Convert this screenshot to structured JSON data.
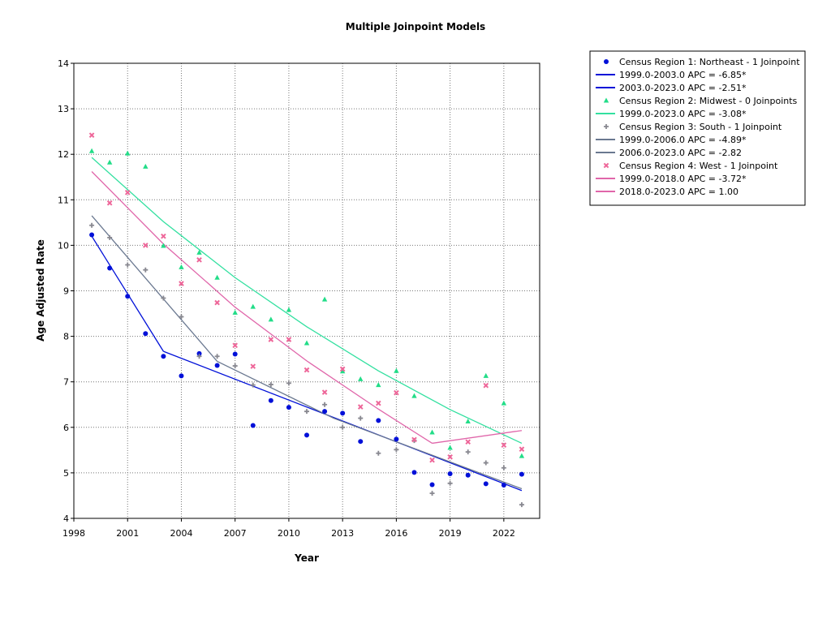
{
  "chart_data": {
    "type": "scatter",
    "title": "Multiple Joinpoint Models",
    "xlabel": "Year",
    "ylabel": "Age Adjusted Rate",
    "xlim": [
      1998,
      2024
    ],
    "ylim": [
      4,
      14
    ],
    "x_ticks": [
      1998,
      2001,
      2004,
      2007,
      2010,
      2013,
      2016,
      2019,
      2022
    ],
    "y_ticks": [
      4,
      5,
      6,
      7,
      8,
      9,
      10,
      11,
      12,
      13,
      14
    ],
    "grid": true,
    "legend_position": "right",
    "series": [
      {
        "name": "Census Region 1: Northeast - 1 Joinpoint",
        "color": "#0010d8",
        "marker": "circle",
        "x": [
          1999,
          2000,
          2001,
          2002,
          2003,
          2004,
          2005,
          2006,
          2007,
          2008,
          2009,
          2010,
          2011,
          2012,
          2013,
          2014,
          2015,
          2016,
          2017,
          2018,
          2019,
          2020,
          2021,
          2022,
          2023
        ],
        "y": [
          10.23,
          9.5,
          8.88,
          8.06,
          7.56,
          7.13,
          7.62,
          7.36,
          7.61,
          6.04,
          6.59,
          6.44,
          5.83,
          6.35,
          6.31,
          5.69,
          6.15,
          5.74,
          5.01,
          4.74,
          4.98,
          4.95,
          4.76,
          4.73,
          4.97
        ],
        "fit": [
          {
            "label": "1999.0-2003.0 APC  =  -6.85*",
            "x": [
              1999,
              2003
            ],
            "y": [
              10.2,
              7.67
            ]
          },
          {
            "label": "2003.0-2023.0 APC  =  -2.51*",
            "x": [
              2003,
              2023
            ],
            "y": [
              7.67,
              4.61
            ]
          }
        ]
      },
      {
        "name": "Census Region 2: Midwest - 0 Joinpoints",
        "color": "#22dd88",
        "fit_color": "#33e0a0",
        "marker": "triangle",
        "x": [
          1999,
          2000,
          2001,
          2002,
          2003,
          2004,
          2005,
          2006,
          2007,
          2008,
          2009,
          2010,
          2011,
          2012,
          2013,
          2014,
          2015,
          2016,
          2017,
          2018,
          2019,
          2020,
          2021,
          2022,
          2023
        ],
        "y": [
          12.07,
          11.82,
          12.02,
          11.73,
          9.99,
          9.52,
          9.84,
          9.29,
          8.52,
          8.65,
          8.37,
          8.58,
          7.85,
          8.81,
          7.23,
          7.06,
          6.93,
          7.24,
          6.69,
          5.89,
          5.55,
          6.13,
          7.13,
          6.53,
          5.37
        ],
        "fit": [
          {
            "label": "1999.0-2023.0 APC  =  -3.08*",
            "x": [
              1999,
              2003,
              2007,
              2011,
              2015,
              2019,
              2023
            ],
            "y": [
              11.93,
              10.52,
              9.29,
              8.21,
              7.24,
              6.39,
              5.65
            ]
          }
        ]
      },
      {
        "name": "Census Region 3: South - 1 Joinpoint",
        "color": "#888890",
        "fit_color": "#6a7890",
        "marker": "plus",
        "x": [
          1999,
          2000,
          2001,
          2002,
          2003,
          2004,
          2005,
          2006,
          2007,
          2008,
          2009,
          2010,
          2011,
          2012,
          2013,
          2014,
          2015,
          2016,
          2017,
          2018,
          2019,
          2020,
          2021,
          2022,
          2023
        ],
        "y": [
          10.44,
          10.17,
          9.57,
          9.46,
          8.84,
          8.43,
          7.56,
          7.56,
          7.35,
          6.93,
          6.94,
          6.97,
          6.35,
          6.5,
          6.0,
          6.2,
          5.43,
          5.51,
          5.71,
          4.55,
          4.77,
          5.46,
          5.22,
          5.11,
          4.3
        ],
        "fit": [
          {
            "label": "1999.0-2006.0 APC  =  -4.89*",
            "x": [
              1999,
              2006
            ],
            "y": [
              10.65,
              7.45
            ]
          },
          {
            "label": "2006.0-2023.0 APC  =  -2.82",
            "x": [
              2006,
              2012.5,
              2023
            ],
            "y": [
              7.45,
              6.2,
              4.65
            ]
          }
        ]
      },
      {
        "name": "Census Region 4: West - 1 Joinpoint",
        "color": "#ee6699",
        "fit_color": "#e066aa",
        "marker": "cross",
        "x": [
          1999,
          2000,
          2001,
          2002,
          2003,
          2004,
          2005,
          2006,
          2007,
          2008,
          2009,
          2010,
          2011,
          2012,
          2013,
          2014,
          2015,
          2016,
          2017,
          2018,
          2019,
          2020,
          2021,
          2022,
          2023
        ],
        "y": [
          12.42,
          10.93,
          11.16,
          10.0,
          10.2,
          9.16,
          9.68,
          8.74,
          7.8,
          7.34,
          7.93,
          7.93,
          7.26,
          6.77,
          7.28,
          6.45,
          6.53,
          6.76,
          5.73,
          5.28,
          5.35,
          5.68,
          6.92,
          5.61,
          5.52
        ],
        "fit": [
          {
            "label": "1999.0-2018.0 APC  =  -3.72*",
            "x": [
              1999,
              2003,
              2007,
              2011,
              2015,
              2018
            ],
            "y": [
              11.62,
              10.03,
              8.64,
              7.46,
              6.4,
              5.65
            ]
          },
          {
            "label": "2018.0-2023.0 APC  =   1.00",
            "x": [
              2018,
              2023
            ],
            "y": [
              5.65,
              5.93
            ]
          }
        ]
      }
    ]
  }
}
